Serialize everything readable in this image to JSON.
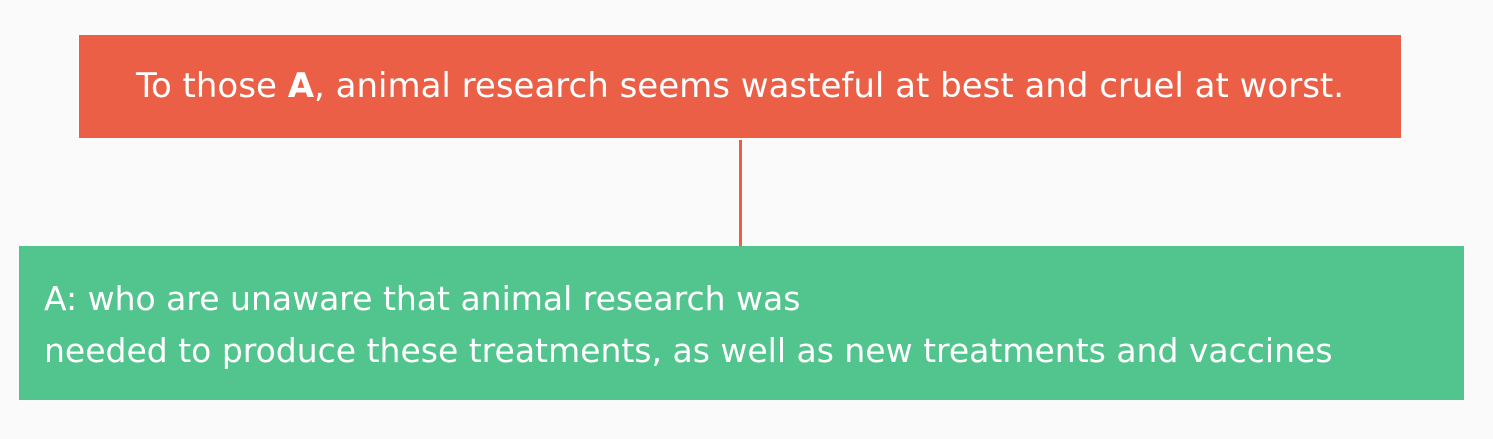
{
  "top_node": {
    "prefix": "To those ",
    "placeholder": "A",
    "suffix": ", animal research seems wasteful at best and cruel at worst."
  },
  "bottom_node": {
    "line1": "A: who are unaware that animal research was",
    "line2": "needed to produce these treatments, as well as new treatments and vaccines"
  },
  "colors": {
    "top_fill": "#ea5f45",
    "bottom_fill": "#52c48d",
    "connector": "#ea5f45",
    "text": "#ffffff",
    "background": "#fafafa"
  }
}
